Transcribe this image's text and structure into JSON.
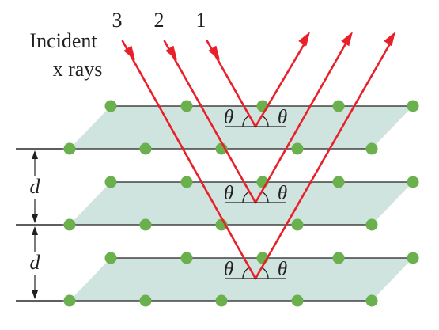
{
  "incident_label": [
    "Incident",
    "x rays"
  ],
  "ray_numbers": [
    "3",
    "2",
    "1"
  ],
  "spacing_label": "d",
  "angle_symbol": "θ",
  "colors": {
    "ray": "#e8202a",
    "plane_fill": "#cfe3df",
    "plane_edge": "#231f20",
    "atom": "#6ab04c",
    "text": "#231f20"
  }
}
